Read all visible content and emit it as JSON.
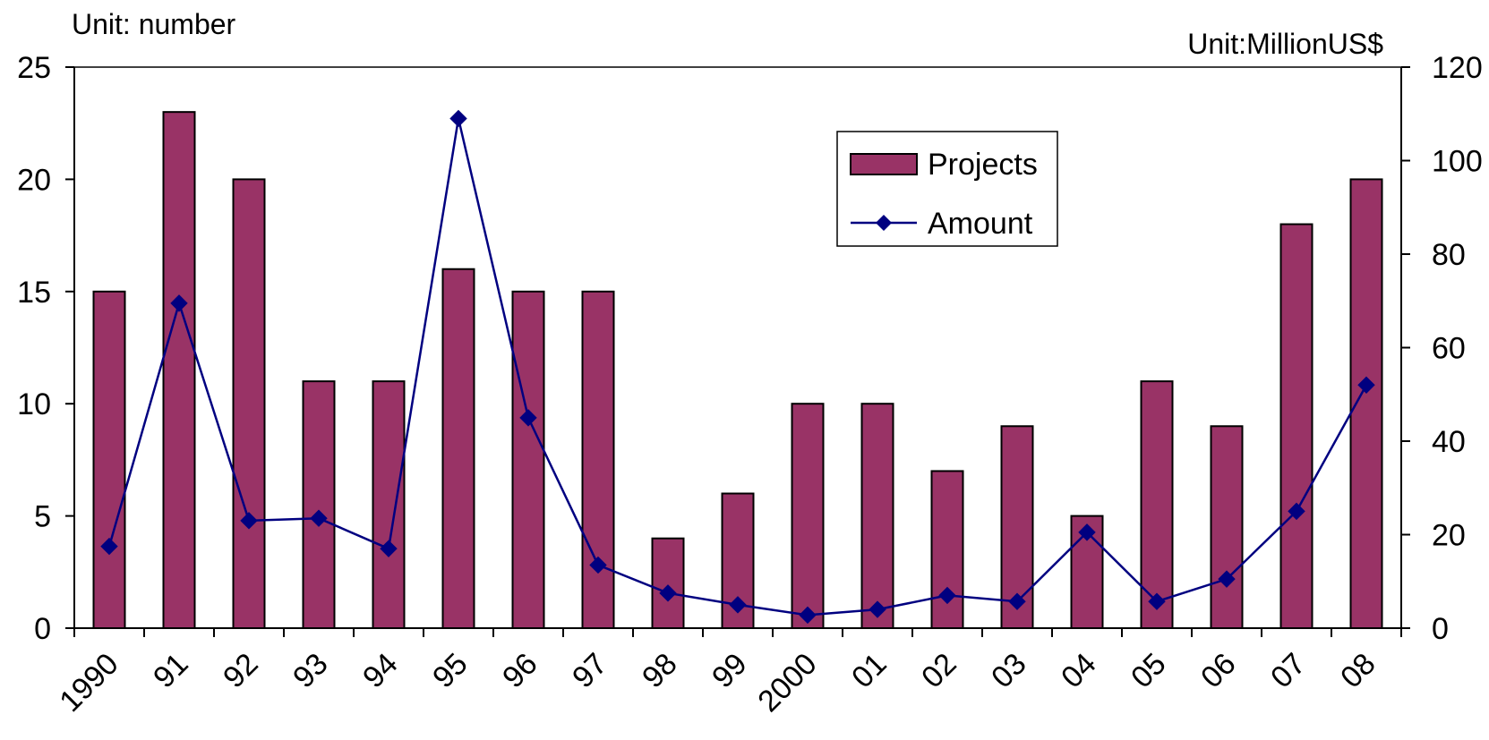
{
  "chart_data": {
    "type": "bar",
    "categories": [
      "1990",
      "91",
      "92",
      "93",
      "94",
      "95",
      "96",
      "97",
      "98",
      "99",
      "2000",
      "01",
      "02",
      "03",
      "04",
      "05",
      "06",
      "07",
      "08"
    ],
    "series": [
      {
        "name": "Projects",
        "type": "bar",
        "axis": "left",
        "values": [
          15,
          23,
          20,
          11,
          11,
          16,
          15,
          15,
          4,
          6,
          10,
          10,
          7,
          9,
          5,
          11,
          9,
          18,
          20
        ]
      },
      {
        "name": "Amount",
        "type": "line",
        "axis": "right",
        "values": [
          17.5,
          69.5,
          23,
          23.5,
          17,
          109,
          45,
          13.5,
          7.5,
          5,
          2.8,
          4,
          7,
          5.7,
          20.5,
          5.7,
          10.5,
          25,
          52
        ]
      }
    ],
    "left_axis": {
      "label": "Unit: number",
      "min": 0,
      "max": 25,
      "ticks": [
        0,
        5,
        10,
        15,
        20,
        25
      ]
    },
    "right_axis": {
      "label": "Unit:MillionUS$",
      "min": 0,
      "max": 120,
      "ticks": [
        0,
        20,
        40,
        60,
        80,
        100,
        120
      ]
    },
    "legend_position": "top-right",
    "grid": false,
    "colors": {
      "bar": "#993366",
      "line": "#000080",
      "axis": "#000000"
    }
  }
}
